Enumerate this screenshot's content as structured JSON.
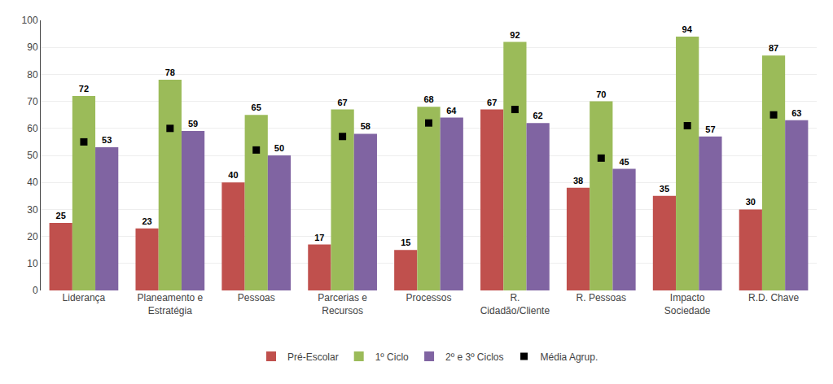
{
  "chart_data": {
    "type": "bar",
    "categories": [
      "Liderança",
      "Planeamento e\nEstratégia",
      "Pessoas",
      "Parcerias e\nRecursos",
      "Processos",
      "R.\nCidadão/Cliente",
      "R. Pessoas",
      "Impacto\nSociedade",
      "R.D. Chave"
    ],
    "series": [
      {
        "name": "Pré-Escolar",
        "color": "#c0504d",
        "data_labels": true,
        "values": [
          25,
          23,
          40,
          17,
          15,
          67,
          38,
          35,
          30
        ]
      },
      {
        "name": "1º Ciclo",
        "color": "#9bbb59",
        "data_labels": true,
        "values": [
          72,
          78,
          65,
          67,
          68,
          92,
          70,
          94,
          87
        ]
      },
      {
        "name": "2º e 3º Ciclos",
        "color": "#8064a2",
        "data_labels": true,
        "values": [
          53,
          59,
          50,
          58,
          64,
          62,
          45,
          57,
          63
        ]
      },
      {
        "name": "Média Agrup.",
        "type": "scatter",
        "marker": "square",
        "color": "#000000",
        "values": [
          55,
          60,
          52,
          57,
          62,
          67,
          49,
          61,
          65
        ]
      }
    ],
    "ylim": [
      0,
      100
    ],
    "yticks": [
      0,
      10,
      20,
      30,
      40,
      50,
      60,
      70,
      80,
      90,
      100
    ],
    "grid": true,
    "legend": "bottom"
  }
}
